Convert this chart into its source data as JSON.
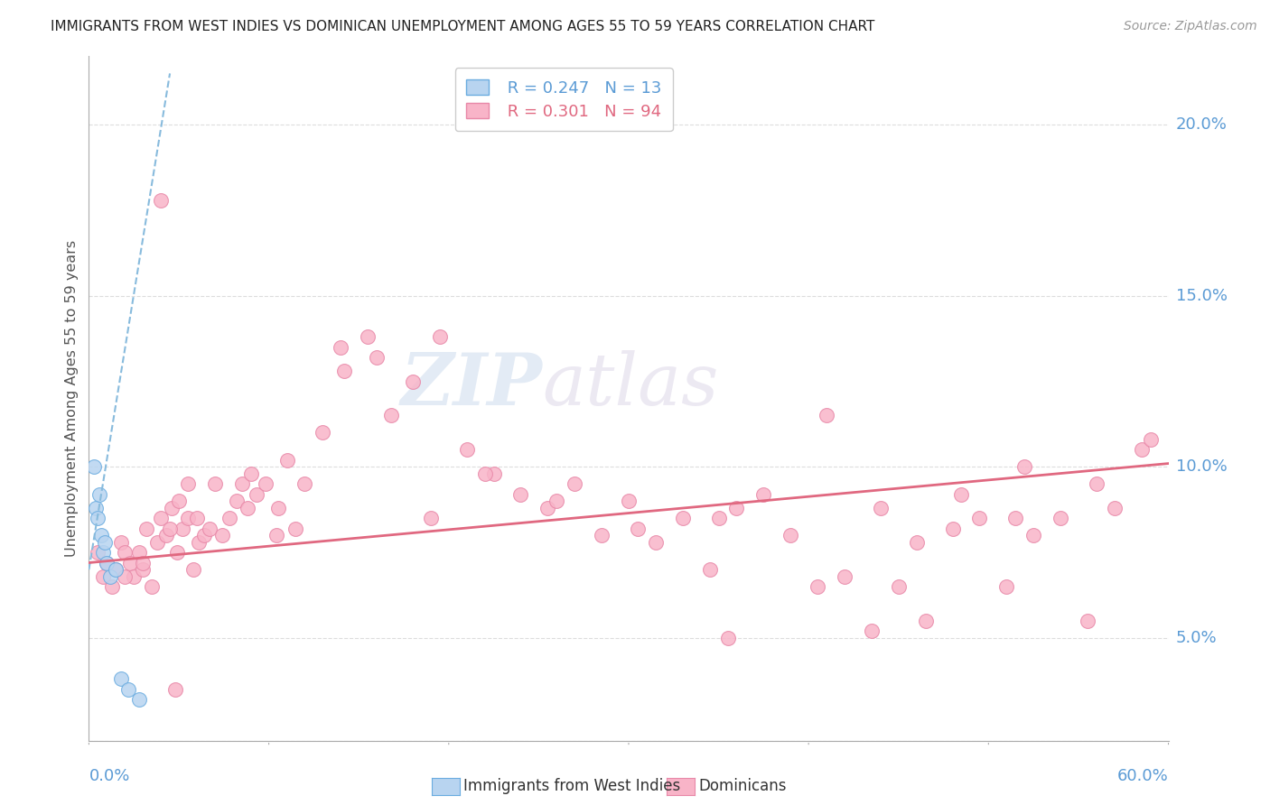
{
  "title": "IMMIGRANTS FROM WEST INDIES VS DOMINICAN UNEMPLOYMENT AMONG AGES 55 TO 59 YEARS CORRELATION CHART",
  "source": "Source: ZipAtlas.com",
  "ylabel": "Unemployment Among Ages 55 to 59 years",
  "ytick_values": [
    5.0,
    10.0,
    15.0,
    20.0
  ],
  "ytick_labels": [
    "5.0%",
    "10.0%",
    "15.0%",
    "20.0%"
  ],
  "xmin": 0.0,
  "xmax": 60.0,
  "ymin": 2.0,
  "ymax": 22.0,
  "yplot_bottom": 2.0,
  "legend_blue_r": "0.247",
  "legend_blue_n": "13",
  "legend_pink_r": "0.301",
  "legend_pink_n": "94",
  "watermark_zip": "ZIP",
  "watermark_atlas": "atlas",
  "blue_fill": "#b8d4f0",
  "blue_edge": "#6aace0",
  "pink_fill": "#f8b4c8",
  "pink_edge": "#e888a8",
  "blue_line_color": "#88bbdd",
  "pink_line_color": "#e06880",
  "grid_color": "#dddddd",
  "title_color": "#222222",
  "source_color": "#999999",
  "axis_blue": "#5b9bd5",
  "ylabel_color": "#555555",
  "blue_x": [
    0.3,
    0.4,
    0.5,
    0.6,
    0.7,
    0.8,
    0.9,
    1.0,
    1.2,
    1.5,
    1.8,
    2.2,
    2.8
  ],
  "blue_y": [
    10.0,
    8.8,
    8.5,
    9.2,
    8.0,
    7.5,
    7.8,
    7.2,
    6.8,
    7.0,
    3.8,
    3.5,
    3.2
  ],
  "blue_line_x0": 0.0,
  "blue_line_x1": 4.5,
  "blue_line_y0": 7.0,
  "blue_line_y1": 21.5,
  "pink_line_x0": 0.0,
  "pink_line_x1": 60.0,
  "pink_line_y0": 7.2,
  "pink_line_y1": 10.1,
  "pink_x": [
    0.5,
    0.8,
    1.0,
    1.3,
    1.5,
    1.8,
    2.0,
    2.3,
    2.5,
    2.8,
    3.0,
    3.2,
    3.5,
    3.8,
    4.0,
    4.3,
    4.6,
    4.9,
    5.2,
    5.5,
    5.8,
    6.1,
    6.4,
    6.7,
    7.0,
    7.4,
    7.8,
    8.2,
    8.8,
    9.3,
    9.8,
    10.4,
    11.0,
    12.0,
    13.0,
    14.2,
    15.5,
    16.8,
    18.0,
    19.5,
    21.0,
    22.5,
    24.0,
    25.5,
    27.0,
    28.5,
    30.0,
    31.5,
    33.0,
    34.5,
    36.0,
    37.5,
    39.0,
    40.5,
    42.0,
    43.5,
    45.0,
    46.5,
    48.0,
    49.5,
    51.0,
    52.5,
    54.0,
    55.5,
    57.0,
    58.5,
    4.5,
    5.0,
    5.5,
    6.0,
    10.5,
    11.5,
    14.0,
    19.0,
    22.0,
    26.0,
    30.5,
    35.0,
    41.0,
    44.0,
    48.5,
    52.0,
    56.0,
    59.0,
    8.5,
    9.0,
    16.0,
    35.5,
    46.0,
    51.5,
    2.0,
    3.0,
    4.0,
    4.8
  ],
  "pink_y": [
    7.5,
    6.8,
    7.2,
    6.5,
    7.0,
    7.8,
    7.5,
    7.2,
    6.8,
    7.5,
    7.0,
    8.2,
    6.5,
    7.8,
    8.5,
    8.0,
    8.8,
    7.5,
    8.2,
    8.5,
    7.0,
    7.8,
    8.0,
    8.2,
    9.5,
    8.0,
    8.5,
    9.0,
    8.8,
    9.2,
    9.5,
    8.0,
    10.2,
    9.5,
    11.0,
    12.8,
    13.8,
    11.5,
    12.5,
    13.8,
    10.5,
    9.8,
    9.2,
    8.8,
    9.5,
    8.0,
    9.0,
    7.8,
    8.5,
    7.0,
    8.8,
    9.2,
    8.0,
    6.5,
    6.8,
    5.2,
    6.5,
    5.5,
    8.2,
    8.5,
    6.5,
    8.0,
    8.5,
    5.5,
    8.8,
    10.5,
    8.2,
    9.0,
    9.5,
    8.5,
    8.8,
    8.2,
    13.5,
    8.5,
    9.8,
    9.0,
    8.2,
    8.5,
    11.5,
    8.8,
    9.2,
    10.0,
    9.5,
    10.8,
    9.5,
    9.8,
    13.2,
    5.0,
    7.8,
    8.5,
    6.8,
    7.2,
    17.8,
    3.5
  ]
}
